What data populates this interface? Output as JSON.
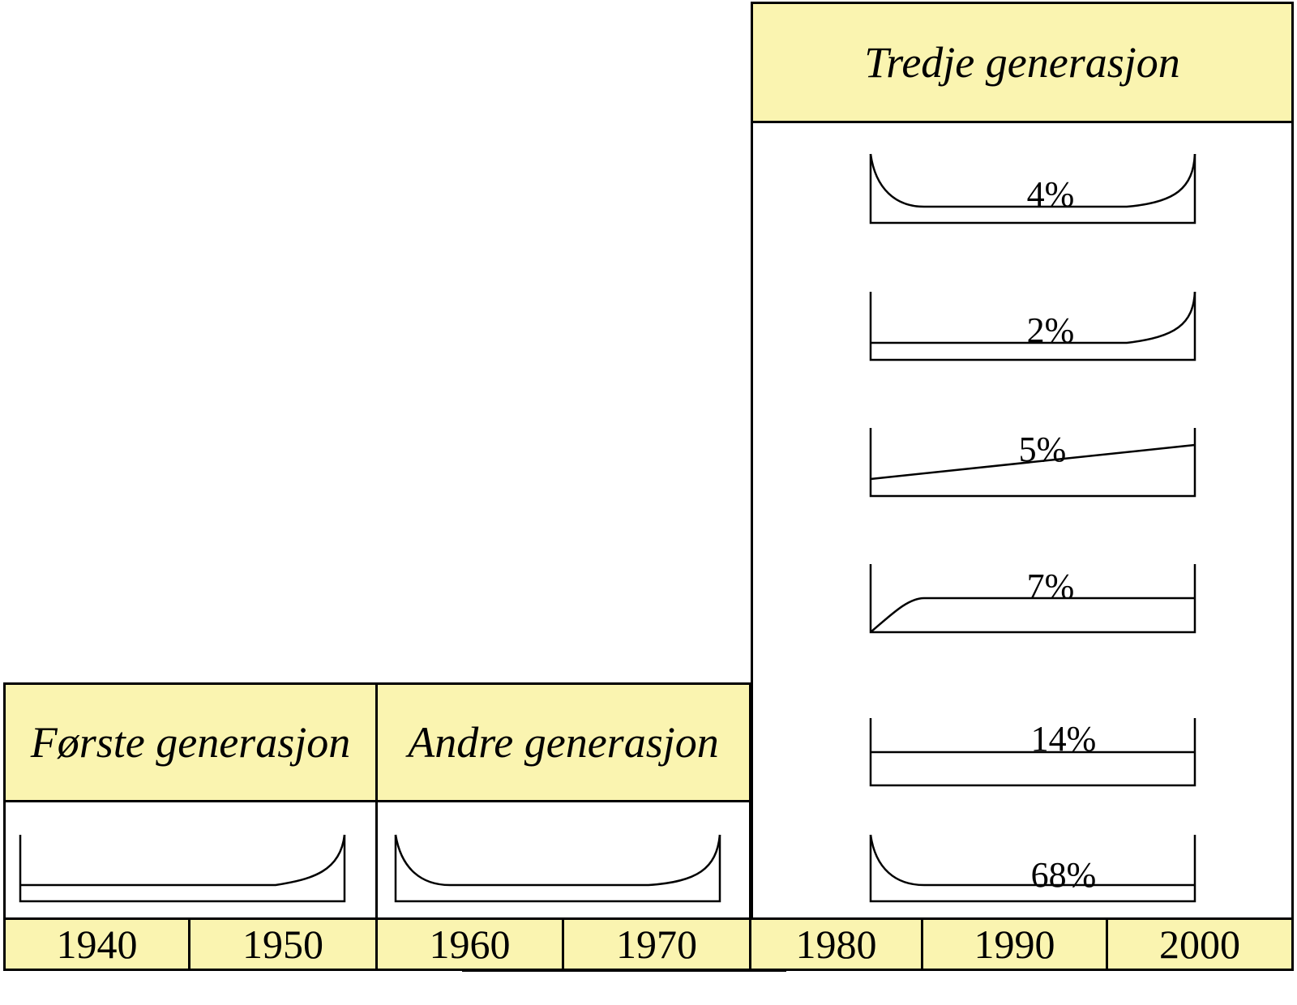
{
  "colors": {
    "header_fill": "#FAF4B0",
    "line": "#000000"
  },
  "generations": [
    {
      "name": "Første generasjon"
    },
    {
      "name": "Andre generasjon"
    },
    {
      "name": "Tredje generasjon"
    }
  ],
  "years": [
    "1940",
    "1950",
    "1960",
    "1970",
    "1980",
    "1990",
    "2000"
  ],
  "third_generation_shares": [
    "4%",
    "2%",
    "5%",
    "7%",
    "14%",
    "68%"
  ]
}
